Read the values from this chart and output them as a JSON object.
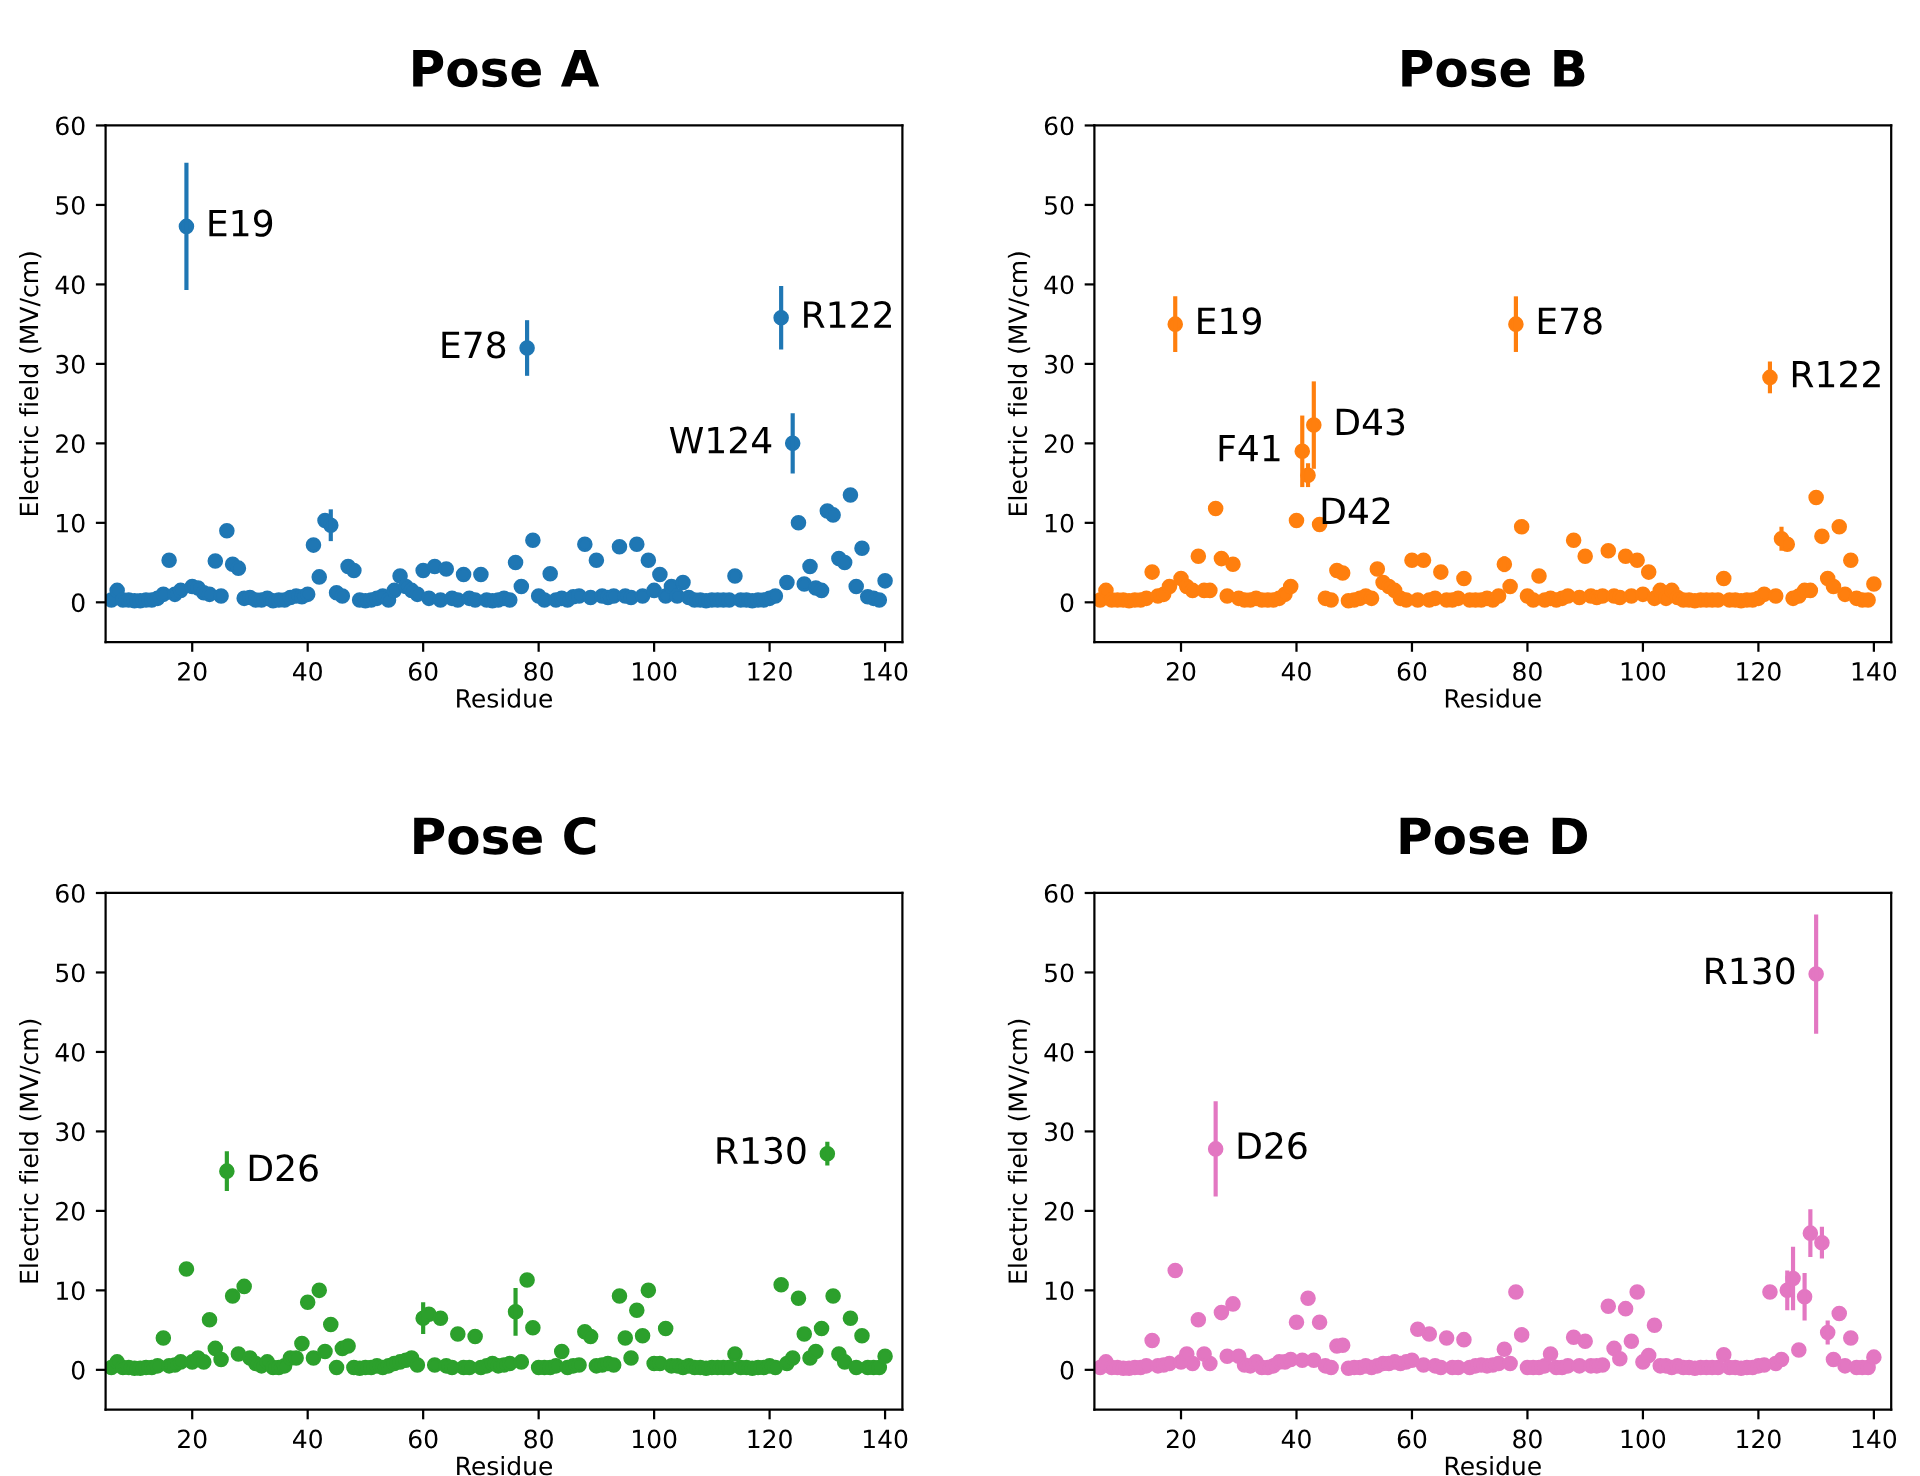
{
  "chart_data": [
    {
      "type": "scatter",
      "title": "Pose A",
      "xlabel": "Residue",
      "ylabel": "Electric field (MV/cm)",
      "xlim": [
        5,
        143
      ],
      "xticks": [
        20,
        40,
        60,
        80,
        100,
        120,
        140
      ],
      "ylim": [
        -5,
        60
      ],
      "yticks": [
        0,
        10,
        20,
        30,
        40,
        50,
        60
      ],
      "marker": "circle",
      "grid": false,
      "x": [
        6,
        7,
        8,
        9,
        10,
        11,
        12,
        13,
        14,
        15,
        16,
        17,
        18,
        19,
        20,
        21,
        22,
        23,
        24,
        25,
        26,
        27,
        28,
        29,
        30,
        31,
        32,
        33,
        34,
        35,
        36,
        37,
        38,
        39,
        40,
        41,
        42,
        43,
        44,
        45,
        46,
        47,
        48,
        49,
        50,
        51,
        52,
        53,
        54,
        55,
        56,
        57,
        58,
        59,
        60,
        61,
        62,
        63,
        64,
        65,
        66,
        67,
        68,
        69,
        70,
        71,
        72,
        73,
        74,
        75,
        76,
        77,
        78,
        79,
        80,
        81,
        82,
        83,
        84,
        85,
        86,
        87,
        88,
        89,
        90,
        91,
        92,
        93,
        94,
        95,
        96,
        97,
        98,
        99,
        100,
        101,
        102,
        103,
        104,
        105,
        106,
        107,
        108,
        109,
        110,
        111,
        112,
        113,
        114,
        115,
        116,
        117,
        118,
        119,
        120,
        121,
        122,
        123,
        124,
        125,
        126,
        127,
        128,
        129,
        130,
        131,
        132,
        133,
        134,
        135,
        136,
        137,
        138,
        139,
        140
      ],
      "series": [
        {
          "color": "#1f77b4",
          "values": [
            0.3,
            1.5,
            0.3,
            0.3,
            0.2,
            0.2,
            0.3,
            0.3,
            0.5,
            1,
            5.3,
            1,
            1.5,
            47.3,
            2,
            1.8,
            1.2,
            1,
            5.2,
            0.8,
            9,
            4.8,
            4.3,
            0.5,
            0.6,
            0.3,
            0.3,
            0.5,
            0.2,
            0.3,
            0.3,
            0.6,
            0.8,
            0.7,
            1,
            7.2,
            3.2,
            10.3,
            9.7,
            1.2,
            0.8,
            4.5,
            4,
            0.3,
            0.2,
            0.3,
            0.5,
            0.8,
            0.3,
            1.5,
            3.3,
            2,
            1.5,
            1,
            4,
            0.5,
            4.5,
            0.3,
            4.2,
            0.5,
            0.3,
            3.5,
            0.5,
            0.3,
            3.5,
            0.3,
            0.2,
            0.3,
            0.5,
            0.3,
            5,
            2,
            32,
            7.8,
            0.8,
            0.3,
            3.6,
            0.3,
            0.5,
            0.3,
            0.7,
            0.8,
            7.3,
            0.6,
            5.3,
            0.8,
            0.6,
            0.8,
            7,
            0.8,
            0.6,
            7.3,
            0.8,
            5.3,
            1.5,
            3.5,
            0.8,
            2,
            0.8,
            2.5,
            0.6,
            0.3,
            0.3,
            0.2,
            0.3,
            0.3,
            0.3,
            0.3,
            3.3,
            0.3,
            0.3,
            0.2,
            0.3,
            0.3,
            0.5,
            0.8,
            35.8,
            2.5,
            20,
            10,
            2.3,
            4.5,
            1.8,
            1.5,
            11.5,
            11,
            5.5,
            5,
            13.5,
            2,
            6.8,
            0.7,
            0.5,
            0.3,
            2.7
          ],
          "errors": [
            null,
            null,
            null,
            null,
            null,
            null,
            null,
            null,
            null,
            null,
            null,
            null,
            null,
            8,
            null,
            null,
            null,
            null,
            null,
            null,
            null,
            null,
            null,
            null,
            null,
            null,
            null,
            null,
            null,
            null,
            null,
            null,
            null,
            null,
            null,
            null,
            null,
            null,
            2,
            null,
            null,
            null,
            null,
            null,
            null,
            null,
            null,
            null,
            null,
            null,
            null,
            null,
            null,
            null,
            null,
            null,
            null,
            null,
            null,
            null,
            null,
            null,
            null,
            null,
            null,
            null,
            null,
            null,
            null,
            null,
            null,
            null,
            3.5,
            null,
            null,
            null,
            null,
            null,
            null,
            null,
            null,
            null,
            null,
            null,
            null,
            null,
            null,
            null,
            null,
            null,
            null,
            null,
            null,
            null,
            null,
            null,
            null,
            null,
            null,
            null,
            null,
            null,
            null,
            null,
            null,
            null,
            null,
            null,
            null,
            null,
            null,
            null,
            null,
            null,
            null,
            null,
            4,
            null,
            3.8,
            null,
            null,
            null,
            null,
            null,
            null,
            null,
            null,
            null,
            null,
            null,
            null,
            null,
            null,
            null,
            null
          ]
        }
      ],
      "annotations": [
        {
          "text": "E19",
          "x": 19,
          "y": 47.3
        },
        {
          "text": "E78",
          "x": 78,
          "y": 32
        },
        {
          "text": "R122",
          "x": 122,
          "y": 35.8
        },
        {
          "text": "W124",
          "x": 124,
          "y": 20
        }
      ]
    },
    {
      "type": "scatter",
      "title": "Pose B",
      "xlabel": "Residue",
      "ylabel": "Electric field (MV/cm)",
      "xlim": [
        5,
        143
      ],
      "xticks": [
        20,
        40,
        60,
        80,
        100,
        120,
        140
      ],
      "ylim": [
        -5,
        60
      ],
      "yticks": [
        0,
        10,
        20,
        30,
        40,
        50,
        60
      ],
      "marker": "circle",
      "grid": false,
      "x": [
        6,
        7,
        8,
        9,
        10,
        11,
        12,
        13,
        14,
        15,
        16,
        17,
        18,
        19,
        20,
        21,
        22,
        23,
        24,
        25,
        26,
        27,
        28,
        29,
        30,
        31,
        32,
        33,
        34,
        35,
        36,
        37,
        38,
        39,
        40,
        41,
        42,
        43,
        44,
        45,
        46,
        47,
        48,
        49,
        50,
        51,
        52,
        53,
        54,
        55,
        56,
        57,
        58,
        59,
        60,
        61,
        62,
        63,
        64,
        65,
        66,
        67,
        68,
        69,
        70,
        71,
        72,
        73,
        74,
        75,
        76,
        77,
        78,
        79,
        80,
        81,
        82,
        83,
        84,
        85,
        86,
        87,
        88,
        89,
        90,
        91,
        92,
        93,
        94,
        95,
        96,
        97,
        98,
        99,
        100,
        101,
        102,
        103,
        104,
        105,
        106,
        107,
        108,
        109,
        110,
        111,
        112,
        113,
        114,
        115,
        116,
        117,
        118,
        119,
        120,
        121,
        122,
        123,
        124,
        125,
        126,
        127,
        128,
        129,
        130,
        131,
        132,
        133,
        134,
        135,
        136,
        137,
        138,
        139,
        140
      ],
      "series": [
        {
          "color": "#ff7f0e",
          "values": [
            0.3,
            1.5,
            0.3,
            0.3,
            0.3,
            0.2,
            0.3,
            0.3,
            0.5,
            3.8,
            0.8,
            1,
            2,
            35,
            3,
            2,
            1.5,
            5.8,
            1.5,
            1.5,
            11.8,
            5.5,
            0.8,
            4.8,
            0.5,
            0.3,
            0.3,
            0.5,
            0.3,
            0.3,
            0.3,
            0.5,
            1,
            2,
            10.3,
            19,
            16,
            22.3,
            9.8,
            0.5,
            0.3,
            4,
            3.7,
            0.2,
            0.3,
            0.5,
            0.8,
            0.5,
            4.2,
            2.5,
            2,
            1.5,
            0.5,
            0.3,
            5.3,
            0.3,
            5.3,
            0.3,
            0.5,
            3.8,
            0.3,
            0.3,
            0.5,
            3,
            0.3,
            0.3,
            0.3,
            0.5,
            0.3,
            0.8,
            4.8,
            2,
            35,
            9.5,
            0.8,
            0.3,
            3.3,
            0.3,
            0.5,
            0.3,
            0.5,
            0.8,
            7.8,
            0.6,
            5.8,
            0.8,
            0.6,
            0.8,
            6.5,
            0.8,
            0.6,
            5.8,
            0.8,
            5.3,
            1,
            3.8,
            0.5,
            1.5,
            0.5,
            1.5,
            0.6,
            0.3,
            0.3,
            0.2,
            0.3,
            0.3,
            0.3,
            0.3,
            3,
            0.3,
            0.3,
            0.2,
            0.3,
            0.3,
            0.5,
            1,
            28.3,
            0.8,
            8,
            7.3,
            0.5,
            0.8,
            1.5,
            1.5,
            13.2,
            8.3,
            3,
            2,
            9.5,
            1,
            5.3,
            0.5,
            0.3,
            0.3,
            2.3
          ],
          "errors": [
            null,
            null,
            null,
            null,
            null,
            null,
            null,
            null,
            null,
            null,
            null,
            null,
            null,
            3.5,
            null,
            null,
            null,
            null,
            null,
            null,
            null,
            null,
            null,
            null,
            null,
            null,
            null,
            null,
            null,
            null,
            null,
            null,
            null,
            null,
            null,
            4.5,
            1.5,
            5.5,
            null,
            null,
            null,
            null,
            null,
            null,
            null,
            null,
            null,
            null,
            null,
            null,
            null,
            null,
            null,
            null,
            null,
            null,
            null,
            null,
            null,
            null,
            null,
            null,
            null,
            null,
            null,
            null,
            null,
            null,
            null,
            null,
            1,
            null,
            3.5,
            null,
            null,
            null,
            null,
            null,
            null,
            null,
            null,
            null,
            null,
            null,
            null,
            null,
            null,
            null,
            null,
            null,
            null,
            null,
            null,
            null,
            null,
            null,
            null,
            null,
            null,
            null,
            null,
            null,
            null,
            null,
            null,
            null,
            null,
            null,
            null,
            null,
            null,
            null,
            null,
            null,
            null,
            null,
            2,
            null,
            1.5,
            null,
            null,
            null,
            null,
            null,
            null,
            null,
            null,
            null,
            null,
            null,
            null,
            null,
            null,
            null,
            null
          ]
        }
      ],
      "annotations": [
        {
          "text": "E19",
          "x": 19,
          "y": 35
        },
        {
          "text": "F41",
          "x": 41,
          "y": 19
        },
        {
          "text": "D42",
          "x": 42,
          "y": 16
        },
        {
          "text": "D43",
          "x": 43,
          "y": 22.3
        },
        {
          "text": "E78",
          "x": 78,
          "y": 35
        },
        {
          "text": "R122",
          "x": 122,
          "y": 28.3
        }
      ]
    },
    {
      "type": "scatter",
      "title": "Pose C",
      "xlabel": "Residue",
      "ylabel": "Electric field (MV/cm)",
      "xlim": [
        5,
        143
      ],
      "xticks": [
        20,
        40,
        60,
        80,
        100,
        120,
        140
      ],
      "ylim": [
        -5,
        60
      ],
      "yticks": [
        0,
        10,
        20,
        30,
        40,
        50,
        60
      ],
      "marker": "circle",
      "grid": false,
      "x": [
        6,
        7,
        8,
        9,
        10,
        11,
        12,
        13,
        14,
        15,
        16,
        17,
        18,
        19,
        20,
        21,
        22,
        23,
        24,
        25,
        26,
        27,
        28,
        29,
        30,
        31,
        32,
        33,
        34,
        35,
        36,
        37,
        38,
        39,
        40,
        41,
        42,
        43,
        44,
        45,
        46,
        47,
        48,
        49,
        50,
        51,
        52,
        53,
        54,
        55,
        56,
        57,
        58,
        59,
        60,
        61,
        62,
        63,
        64,
        65,
        66,
        67,
        68,
        69,
        70,
        71,
        72,
        73,
        74,
        75,
        76,
        77,
        78,
        79,
        80,
        81,
        82,
        83,
        84,
        85,
        86,
        87,
        88,
        89,
        90,
        91,
        92,
        93,
        94,
        95,
        96,
        97,
        98,
        99,
        100,
        101,
        102,
        103,
        104,
        105,
        106,
        107,
        108,
        109,
        110,
        111,
        112,
        113,
        114,
        115,
        116,
        117,
        118,
        119,
        120,
        121,
        122,
        123,
        124,
        125,
        126,
        127,
        128,
        129,
        130,
        131,
        132,
        133,
        134,
        135,
        136,
        137,
        138,
        139,
        140
      ],
      "series": [
        {
          "color": "#2ca02c",
          "values": [
            0.3,
            1,
            0.3,
            0.3,
            0.2,
            0.2,
            0.3,
            0.3,
            0.5,
            4,
            0.5,
            0.6,
            1,
            12.7,
            1,
            1.5,
            1,
            6.3,
            2.7,
            1.3,
            25,
            9.3,
            2,
            10.5,
            1.5,
            0.8,
            0.5,
            1,
            0.3,
            0.3,
            0.5,
            1.5,
            1.5,
            3.3,
            8.5,
            1.5,
            10,
            2.3,
            5.7,
            0.3,
            2.7,
            3,
            0.3,
            0.2,
            0.3,
            0.3,
            0.5,
            0.3,
            0.5,
            0.8,
            1,
            1.2,
            1.5,
            0.6,
            6.5,
            7,
            0.6,
            6.5,
            0.5,
            0.3,
            4.5,
            0.3,
            0.3,
            4.2,
            0.3,
            0.5,
            0.8,
            0.5,
            0.6,
            0.8,
            7.3,
            1,
            11.3,
            5.3,
            0.3,
            0.3,
            0.3,
            0.5,
            2.3,
            0.3,
            0.5,
            0.6,
            4.8,
            4.2,
            0.5,
            0.6,
            0.8,
            0.6,
            9.3,
            4,
            1.5,
            7.5,
            4.3,
            10,
            0.8,
            0.8,
            5.2,
            0.5,
            0.5,
            0.3,
            0.5,
            0.3,
            0.3,
            0.2,
            0.3,
            0.3,
            0.3,
            0.3,
            2,
            0.3,
            0.3,
            0.2,
            0.3,
            0.3,
            0.5,
            0.3,
            10.7,
            0.8,
            1.5,
            9,
            4.5,
            1.5,
            2.3,
            5.2,
            27.2,
            9.3,
            2,
            1,
            6.5,
            0.3,
            4.3,
            0.3,
            0.3,
            0.3,
            1.7
          ],
          "errors": [
            null,
            null,
            null,
            null,
            null,
            null,
            null,
            null,
            null,
            null,
            null,
            null,
            null,
            null,
            null,
            null,
            null,
            null,
            null,
            null,
            2.5,
            null,
            null,
            null,
            null,
            null,
            null,
            null,
            null,
            null,
            null,
            null,
            null,
            null,
            null,
            null,
            null,
            null,
            null,
            null,
            null,
            null,
            null,
            null,
            null,
            null,
            null,
            null,
            null,
            null,
            null,
            null,
            null,
            null,
            2,
            null,
            null,
            null,
            null,
            null,
            null,
            null,
            null,
            null,
            null,
            null,
            null,
            null,
            null,
            null,
            3,
            null,
            null,
            null,
            null,
            null,
            null,
            null,
            null,
            null,
            null,
            null,
            null,
            null,
            null,
            null,
            null,
            null,
            null,
            null,
            null,
            null,
            null,
            null,
            null,
            null,
            null,
            null,
            null,
            null,
            null,
            null,
            null,
            null,
            null,
            null,
            null,
            null,
            null,
            null,
            null,
            null,
            null,
            null,
            null,
            null,
            null,
            null,
            null,
            null,
            null,
            null,
            null,
            null,
            1.5,
            null,
            null,
            null,
            null,
            null,
            null,
            null,
            null,
            null,
            null
          ]
        }
      ],
      "annotations": [
        {
          "text": "D26",
          "x": 26,
          "y": 25
        },
        {
          "text": "R130",
          "x": 130,
          "y": 27.2
        }
      ]
    },
    {
      "type": "scatter",
      "title": "Pose D",
      "xlabel": "Residue",
      "ylabel": "Electric field (MV/cm)",
      "xlim": [
        5,
        143
      ],
      "xticks": [
        20,
        40,
        60,
        80,
        100,
        120,
        140
      ],
      "ylim": [
        -5,
        60
      ],
      "yticks": [
        0,
        10,
        20,
        30,
        40,
        50,
        60
      ],
      "marker": "circle",
      "grid": false,
      "x": [
        6,
        7,
        8,
        9,
        10,
        11,
        12,
        13,
        14,
        15,
        16,
        17,
        18,
        19,
        20,
        21,
        22,
        23,
        24,
        25,
        26,
        27,
        28,
        29,
        30,
        31,
        32,
        33,
        34,
        35,
        36,
        37,
        38,
        39,
        40,
        41,
        42,
        43,
        44,
        45,
        46,
        47,
        48,
        49,
        50,
        51,
        52,
        53,
        54,
        55,
        56,
        57,
        58,
        59,
        60,
        61,
        62,
        63,
        64,
        65,
        66,
        67,
        68,
        69,
        70,
        71,
        72,
        73,
        74,
        75,
        76,
        77,
        78,
        79,
        80,
        81,
        82,
        83,
        84,
        85,
        86,
        87,
        88,
        89,
        90,
        91,
        92,
        93,
        94,
        95,
        96,
        97,
        98,
        99,
        100,
        101,
        102,
        103,
        104,
        105,
        106,
        107,
        108,
        109,
        110,
        111,
        112,
        113,
        114,
        115,
        116,
        117,
        118,
        119,
        120,
        121,
        122,
        123,
        124,
        125,
        126,
        127,
        128,
        129,
        130,
        131,
        132,
        133,
        134,
        135,
        136,
        137,
        138,
        139,
        140
      ],
      "series": [
        {
          "color": "#e377c2",
          "values": [
            0.3,
            1,
            0.3,
            0.3,
            0.2,
            0.2,
            0.3,
            0.3,
            0.5,
            3.7,
            0.5,
            0.6,
            0.8,
            12.5,
            1,
            2,
            0.8,
            6.3,
            2,
            0.8,
            27.8,
            7.2,
            1.7,
            8.3,
            1.7,
            0.6,
            0.5,
            1,
            0.3,
            0.3,
            0.5,
            1,
            1,
            1.3,
            6,
            1.2,
            9,
            1.2,
            6,
            0.5,
            0.3,
            3,
            3.1,
            0.2,
            0.3,
            0.3,
            0.5,
            0.3,
            0.5,
            0.8,
            0.8,
            1,
            0.8,
            1,
            1.2,
            5.1,
            0.6,
            4.5,
            0.5,
            0.3,
            4,
            0.3,
            0.3,
            3.8,
            0.3,
            0.5,
            0.6,
            0.5,
            0.6,
            0.8,
            2.6,
            0.8,
            9.8,
            4.4,
            0.3,
            0.3,
            0.3,
            0.5,
            2,
            0.3,
            0.3,
            0.5,
            4.1,
            0.5,
            3.6,
            0.5,
            0.5,
            0.6,
            8,
            2.7,
            1.4,
            7.7,
            3.6,
            9.8,
            1,
            1.8,
            5.6,
            0.5,
            0.5,
            0.3,
            0.5,
            0.3,
            0.3,
            0.2,
            0.3,
            0.3,
            0.3,
            0.3,
            1.9,
            0.3,
            0.3,
            0.2,
            0.3,
            0.3,
            0.5,
            0.6,
            9.8,
            0.8,
            1.3,
            10,
            11.5,
            2.5,
            9.2,
            17.2,
            49.8,
            16,
            4.7,
            1.3,
            7.1,
            0.5,
            4,
            0.3,
            0.3,
            0.3,
            1.6
          ],
          "errors": [
            null,
            null,
            null,
            null,
            null,
            null,
            null,
            null,
            null,
            null,
            null,
            null,
            null,
            null,
            null,
            null,
            null,
            null,
            null,
            null,
            6,
            null,
            null,
            null,
            null,
            null,
            null,
            null,
            null,
            null,
            null,
            null,
            null,
            null,
            null,
            null,
            null,
            null,
            null,
            null,
            null,
            null,
            null,
            null,
            null,
            null,
            null,
            null,
            null,
            null,
            null,
            null,
            null,
            null,
            null,
            null,
            null,
            null,
            null,
            null,
            null,
            null,
            null,
            null,
            null,
            null,
            null,
            null,
            null,
            null,
            null,
            null,
            null,
            null,
            null,
            null,
            null,
            null,
            null,
            null,
            null,
            null,
            null,
            null,
            null,
            null,
            null,
            null,
            null,
            null,
            null,
            null,
            null,
            null,
            null,
            null,
            null,
            null,
            null,
            null,
            null,
            null,
            null,
            null,
            null,
            null,
            null,
            null,
            null,
            null,
            null,
            null,
            null,
            null,
            null,
            null,
            null,
            null,
            null,
            2.5,
            4,
            null,
            3,
            3,
            7.5,
            2,
            1.5,
            null,
            null,
            null,
            null,
            null,
            null,
            null,
            null
          ]
        }
      ],
      "annotations": [
        {
          "text": "D26",
          "x": 26,
          "y": 27.8
        },
        {
          "text": "R130",
          "x": 130,
          "y": 49.8
        }
      ]
    }
  ]
}
